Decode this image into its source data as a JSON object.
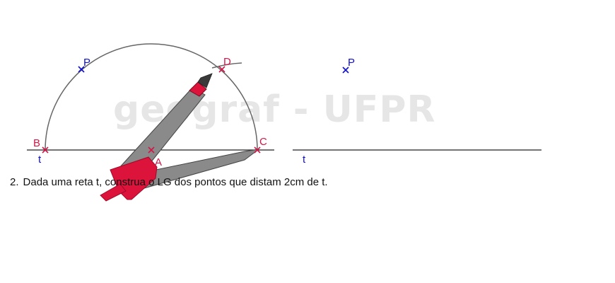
{
  "watermark": "geograf - UFPR",
  "left_figure": {
    "points": {
      "P": "P",
      "D": "D",
      "B": "B",
      "A": "A",
      "C": "C"
    },
    "line_label": "t"
  },
  "right_figure": {
    "point_label": "P",
    "line_label": "t"
  },
  "exercise": {
    "number": "2.",
    "text": "Dada uma reta t, construa o LG dos pontos que distam 2cm de t."
  },
  "colors": {
    "point_red": "#d01848",
    "point_blue": "#1010d0",
    "compass_red": "#dc143c",
    "compass_gray": "#8a8a8a",
    "watermark_gray": "#e6e6e6"
  }
}
